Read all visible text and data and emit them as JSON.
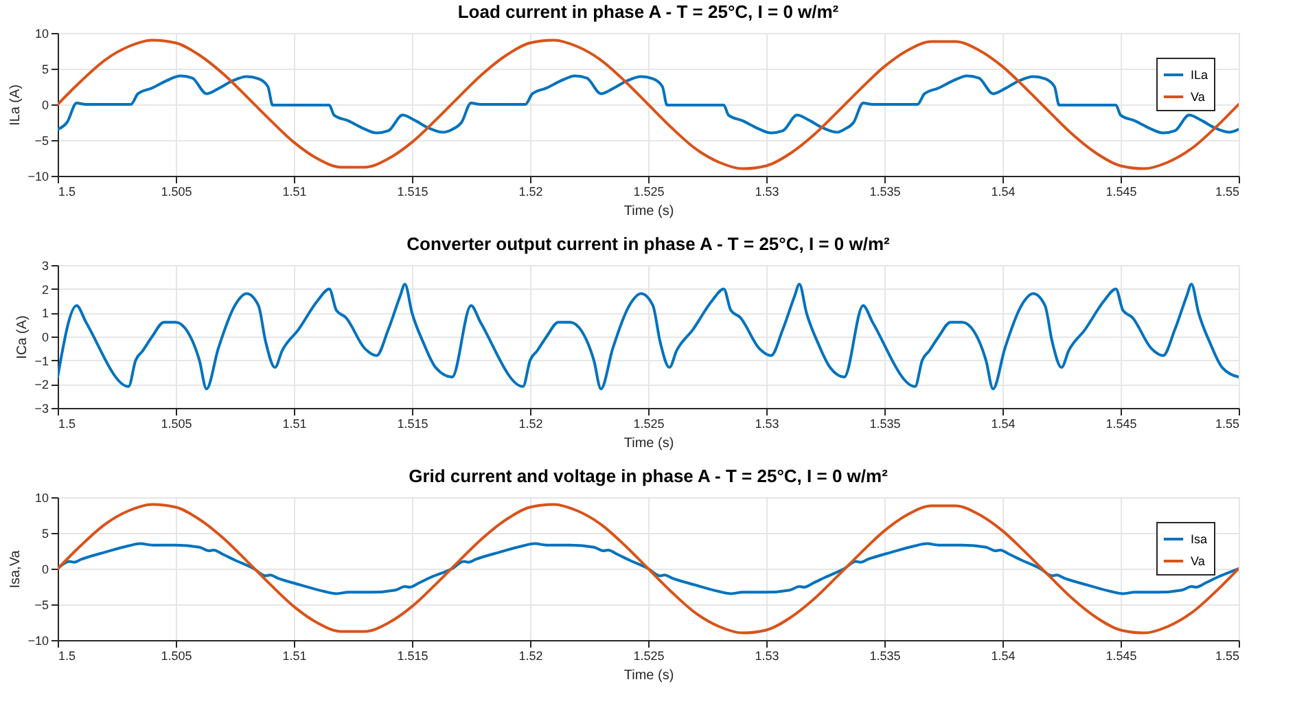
{
  "chart_data": [
    {
      "type": "line",
      "title": "Load current in phase A - T = 25°C, I = 0 w/m²",
      "xlabel": "Time (s)",
      "ylabel": "ILa (A)",
      "xlim": [
        1.5,
        1.55
      ],
      "xticks": [
        1.5,
        1.505,
        1.51,
        1.515,
        1.52,
        1.525,
        1.53,
        1.535,
        1.54,
        1.545,
        1.55
      ],
      "ylim": [
        -10,
        10
      ],
      "yticks": [
        -10,
        -5,
        0,
        5,
        10
      ],
      "grid": true,
      "legend": "top right",
      "series": [
        {
          "name": "ILa",
          "color": "#0072bd",
          "x": [
            1.5,
            1.5004,
            1.5008,
            1.5012,
            1.5031,
            1.5034,
            1.504,
            1.5046,
            1.5052,
            1.5057,
            1.5063,
            1.5068,
            1.5074,
            1.508,
            1.5085,
            1.5089,
            1.5091,
            1.5115,
            1.5117,
            1.5123,
            1.5129,
            1.5135,
            1.514,
            1.5146,
            1.5151,
            1.5157,
            1.5163,
            1.5167,
            1.5171,
            1.5175,
            1.5179,
            1.5198,
            1.5201,
            1.5207,
            1.5213,
            1.5219,
            1.5224,
            1.523,
            1.5235,
            1.5241,
            1.5247,
            1.5252,
            1.5256,
            1.5258,
            1.5282,
            1.5284,
            1.529,
            1.5296,
            1.5302,
            1.5307,
            1.5313,
            1.5318,
            1.5324,
            1.533,
            1.5333,
            1.5337,
            1.5341,
            1.5345,
            1.5364,
            1.5367,
            1.5373,
            1.5379,
            1.5385,
            1.539,
            1.5396,
            1.5401,
            1.5407,
            1.5413,
            1.5418,
            1.5422,
            1.5424,
            1.5448,
            1.545,
            1.5456,
            1.5462,
            1.5468,
            1.5473,
            1.5479,
            1.5484,
            1.549,
            1.5496,
            1.55
          ],
          "values": [
            -3.5,
            -2.5,
            0.2,
            0,
            0,
            1.5,
            2.3,
            3.3,
            4.0,
            3.7,
            1.5,
            2.2,
            3.3,
            3.9,
            3.6,
            2.5,
            -0.1,
            -0.1,
            -1.5,
            -2.3,
            -3.3,
            -4.0,
            -3.7,
            -1.5,
            -2.2,
            -3.3,
            -3.9,
            -3.5,
            -2.5,
            0.2,
            0,
            0,
            1.5,
            2.3,
            3.3,
            4.0,
            3.7,
            1.5,
            2.2,
            3.3,
            3.9,
            3.6,
            2.5,
            -0.1,
            -0.1,
            -1.5,
            -2.3,
            -3.3,
            -4.0,
            -3.7,
            -1.5,
            -2.2,
            -3.3,
            -3.9,
            -3.5,
            -2.5,
            0.2,
            0,
            0,
            1.5,
            2.3,
            3.3,
            4.0,
            3.7,
            1.5,
            2.2,
            3.3,
            3.9,
            3.6,
            2.5,
            -0.1,
            -0.1,
            -1.5,
            -2.3,
            -3.3,
            -4.0,
            -3.7,
            -1.5,
            -2.2,
            -3.3,
            -3.9,
            -3.5
          ]
        },
        {
          "name": "Va",
          "color": "#d95319",
          "x": [
            1.5,
            1.501,
            1.502,
            1.503,
            1.504,
            1.505,
            1.506,
            1.507,
            1.508,
            1.509,
            1.51,
            1.511,
            1.512,
            1.513,
            1.514,
            1.515,
            1.516,
            1.517,
            1.518,
            1.519,
            1.52,
            1.521,
            1.522,
            1.523,
            1.524,
            1.525,
            1.526,
            1.527,
            1.528,
            1.529,
            1.53,
            1.531,
            1.532,
            1.533,
            1.534,
            1.535,
            1.536,
            1.537,
            1.538,
            1.539,
            1.54,
            1.541,
            1.542,
            1.543,
            1.544,
            1.545,
            1.546,
            1.547,
            1.548,
            1.549,
            1.55
          ],
          "values": [
            0,
            3.3,
            6.2,
            8.1,
            9.0,
            8.6,
            6.9,
            4.3,
            1.1,
            -2.2,
            -5.3,
            -7.6,
            -8.8,
            -8.8,
            -7.6,
            -5.3,
            -2.2,
            1.1,
            4.3,
            6.9,
            8.6,
            9.0,
            8.1,
            6.2,
            3.3,
            0,
            -3.3,
            -6.2,
            -8.1,
            -9.0,
            -8.6,
            -6.9,
            -4.3,
            -1.1,
            2.2,
            5.3,
            7.6,
            8.8,
            8.8,
            7.6,
            5.3,
            2.2,
            -1.1,
            -4.3,
            -6.9,
            -8.6,
            -9.0,
            -8.1,
            -6.2,
            -3.3,
            0
          ]
        }
      ]
    },
    {
      "type": "line",
      "title": "Converter output current in phase A - T = 25°C, I = 0 w/m²",
      "xlabel": "Time (s)",
      "ylabel": "ICa (A)",
      "xlim": [
        1.5,
        1.55
      ],
      "xticks": [
        1.5,
        1.505,
        1.51,
        1.515,
        1.52,
        1.525,
        1.53,
        1.535,
        1.54,
        1.545,
        1.55
      ],
      "ylim": [
        -3,
        3
      ],
      "yticks": [
        -3,
        -2,
        -1,
        0,
        1,
        2,
        3
      ],
      "grid": true,
      "series": [
        {
          "color": "#0072bd",
          "x": [
            1.5,
            1.5008,
            1.5012,
            1.503,
            1.5033,
            1.5036,
            1.504,
            1.5045,
            1.505,
            1.5055,
            1.506,
            1.5063,
            1.5068,
            1.5075,
            1.508,
            1.5085,
            1.5088,
            1.5092,
            1.5095,
            1.5102,
            1.511,
            1.5115,
            1.5118,
            1.5122,
            1.513,
            1.5135,
            1.514,
            1.5145,
            1.5147,
            1.515,
            1.5155,
            1.516,
            1.5167,
            1.5175,
            1.5179,
            1.5197,
            1.52,
            1.5203,
            1.5207,
            1.5212,
            1.5217,
            1.5222,
            1.5227,
            1.523,
            1.5235,
            1.5242,
            1.5247,
            1.5252,
            1.5255,
            1.5259,
            1.5262,
            1.5269,
            1.5277,
            1.5282,
            1.5285,
            1.5289,
            1.5297,
            1.5302,
            1.5307,
            1.5312,
            1.5314,
            1.5317,
            1.5322,
            1.5327,
            1.5333,
            1.5341,
            1.5345,
            1.5363,
            1.5366,
            1.5369,
            1.5373,
            1.5378,
            1.5383,
            1.5388,
            1.5393,
            1.5396,
            1.5401,
            1.5408,
            1.5413,
            1.5418,
            1.5421,
            1.5425,
            1.5428,
            1.5435,
            1.5443,
            1.5448,
            1.5451,
            1.5455,
            1.5463,
            1.5468,
            1.5473,
            1.5478,
            1.548,
            1.5483,
            1.5488,
            1.5493,
            1.55
          ],
          "values": [
            -1.7,
            1.3,
            0.6,
            -2.1,
            -1.0,
            -0.6,
            0.0,
            0.6,
            0.6,
            0.2,
            -1.0,
            -2.2,
            -0.5,
            1.3,
            1.8,
            1.3,
            -0.2,
            -1.3,
            -0.6,
            0.3,
            1.5,
            2.0,
            1.1,
            0.8,
            -0.5,
            -0.8,
            0.3,
            1.7,
            2.2,
            1.0,
            -0.3,
            -1.3,
            -1.7,
            1.3,
            0.6,
            -2.1,
            -1.0,
            -0.6,
            0.0,
            0.6,
            0.6,
            0.2,
            -1.0,
            -2.2,
            -0.5,
            1.3,
            1.8,
            1.3,
            -0.2,
            -1.3,
            -0.6,
            0.3,
            1.5,
            2.0,
            1.1,
            0.8,
            -0.5,
            -0.8,
            0.3,
            1.7,
            2.2,
            1.0,
            -0.3,
            -1.3,
            -1.7,
            1.3,
            0.6,
            -2.1,
            -1.0,
            -0.6,
            0.0,
            0.6,
            0.6,
            0.2,
            -1.0,
            -2.2,
            -0.5,
            1.3,
            1.8,
            1.3,
            -0.2,
            -1.3,
            -0.6,
            0.3,
            1.5,
            2.0,
            1.1,
            0.8,
            -0.5,
            -0.8,
            0.3,
            1.7,
            2.2,
            1.0,
            -0.3,
            -1.3,
            -1.7
          ]
        }
      ]
    },
    {
      "type": "line",
      "title": "Grid current and voltage in phase A - T = 25°C, I = 0 w/m²",
      "xlabel": "Time (s)",
      "ylabel": "Isa,Va",
      "xlim": [
        1.5,
        1.55
      ],
      "xticks": [
        1.5,
        1.505,
        1.51,
        1.515,
        1.52,
        1.525,
        1.53,
        1.535,
        1.54,
        1.545,
        1.55
      ],
      "ylim": [
        -10,
        10
      ],
      "yticks": [
        -10,
        -5,
        0,
        5,
        10
      ],
      "grid": true,
      "legend": "top right",
      "series": [
        {
          "name": "Isa",
          "color": "#0072bd",
          "x": [
            1.5,
            1.5005,
            1.5007,
            1.501,
            1.502,
            1.503,
            1.5035,
            1.504,
            1.505,
            1.506,
            1.5064,
            1.5066,
            1.507,
            1.5075,
            1.5083,
            1.5088,
            1.509,
            1.5093,
            1.5103,
            1.5113,
            1.5118,
            1.5123,
            1.5133,
            1.5143,
            1.5147,
            1.5149,
            1.5153,
            1.5158,
            1.5167,
            1.5172,
            1.5174,
            1.5177,
            1.5187,
            1.5197,
            1.5202,
            1.5207,
            1.5217,
            1.5227,
            1.5231,
            1.5233,
            1.5237,
            1.5242,
            1.525,
            1.5255,
            1.5257,
            1.526,
            1.527,
            1.528,
            1.5285,
            1.529,
            1.53,
            1.531,
            1.5314,
            1.5316,
            1.532,
            1.5325,
            1.5333,
            1.5338,
            1.534,
            1.5343,
            1.5353,
            1.5363,
            1.5368,
            1.5373,
            1.5383,
            1.5393,
            1.5397,
            1.5399,
            1.5403,
            1.5408,
            1.5416,
            1.5421,
            1.5423,
            1.5426,
            1.5436,
            1.5446,
            1.5451,
            1.5456,
            1.5466,
            1.5476,
            1.548,
            1.5482,
            1.5486,
            1.5491,
            1.55
          ],
          "values": [
            0,
            1.0,
            0.9,
            1.3,
            2.3,
            3.2,
            3.5,
            3.3,
            3.3,
            3.0,
            2.5,
            2.6,
            2.0,
            1.2,
            0,
            -1.0,
            -0.9,
            -1.3,
            -2.3,
            -3.2,
            -3.5,
            -3.3,
            -3.3,
            -3.0,
            -2.5,
            -2.6,
            -2.0,
            -1.2,
            0,
            1.0,
            0.9,
            1.3,
            2.3,
            3.2,
            3.5,
            3.3,
            3.3,
            3.0,
            2.5,
            2.6,
            2.0,
            1.2,
            0,
            -1.0,
            -0.9,
            -1.3,
            -2.3,
            -3.2,
            -3.5,
            -3.3,
            -3.3,
            -3.0,
            -2.5,
            -2.6,
            -2.0,
            -1.2,
            0,
            1.0,
            0.9,
            1.3,
            2.3,
            3.2,
            3.5,
            3.3,
            3.3,
            3.0,
            2.5,
            2.6,
            2.0,
            1.2,
            0,
            -1.0,
            -0.9,
            -1.3,
            -2.3,
            -3.2,
            -3.5,
            -3.3,
            -3.3,
            -3.0,
            -2.5,
            -2.6,
            -2.0,
            -1.2,
            0
          ]
        },
        {
          "name": "Va",
          "color": "#d95319",
          "x": [
            1.5,
            1.501,
            1.502,
            1.503,
            1.504,
            1.505,
            1.506,
            1.507,
            1.508,
            1.509,
            1.51,
            1.511,
            1.512,
            1.513,
            1.514,
            1.515,
            1.516,
            1.517,
            1.518,
            1.519,
            1.52,
            1.521,
            1.522,
            1.523,
            1.524,
            1.525,
            1.526,
            1.527,
            1.528,
            1.529,
            1.53,
            1.531,
            1.532,
            1.533,
            1.534,
            1.535,
            1.536,
            1.537,
            1.538,
            1.539,
            1.54,
            1.541,
            1.542,
            1.543,
            1.544,
            1.545,
            1.546,
            1.547,
            1.548,
            1.549,
            1.55
          ],
          "values": [
            0,
            3.3,
            6.2,
            8.1,
            9.0,
            8.6,
            6.9,
            4.3,
            1.1,
            -2.2,
            -5.3,
            -7.6,
            -8.8,
            -8.8,
            -7.6,
            -5.3,
            -2.2,
            1.1,
            4.3,
            6.9,
            8.6,
            9.0,
            8.1,
            6.2,
            3.3,
            0,
            -3.3,
            -6.2,
            -8.1,
            -9.0,
            -8.6,
            -6.9,
            -4.3,
            -1.1,
            2.2,
            5.3,
            7.6,
            8.8,
            8.8,
            7.6,
            5.3,
            2.2,
            -1.1,
            -4.3,
            -6.9,
            -8.6,
            -9.0,
            -8.1,
            -6.2,
            -3.3,
            0
          ]
        }
      ]
    }
  ]
}
